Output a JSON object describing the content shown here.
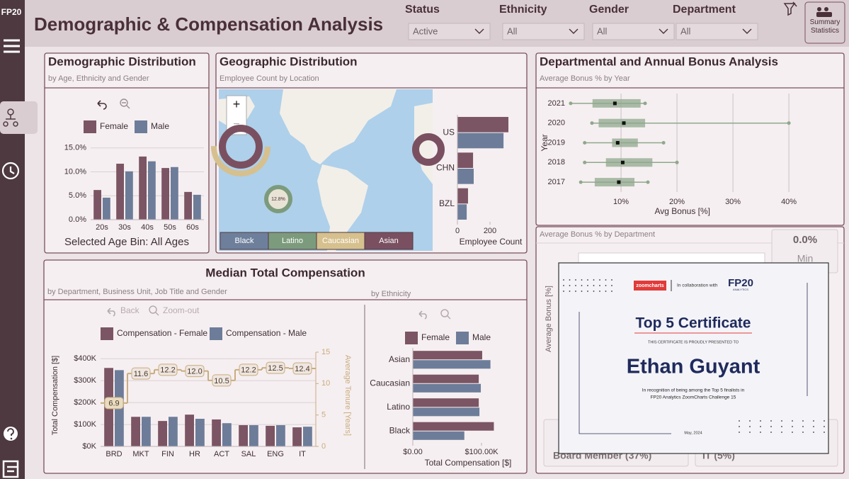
{
  "header": {
    "logo": "FP20",
    "title": "Demographic & Compensation Analysis",
    "filters": [
      {
        "label": "Status",
        "value": "Active"
      },
      {
        "label": "Ethnicity",
        "value": "All"
      },
      {
        "label": "Gender",
        "value": "All"
      },
      {
        "label": "Department",
        "value": "All"
      }
    ],
    "button": "Summary Statistics"
  },
  "demographic": {
    "title": "Demographic Distribution",
    "subtitle": "by Age, Ethnicity and Gender",
    "footer": "Selected Age Bin: All Ages",
    "chart_data": {
      "type": "bar",
      "categories": [
        "20s",
        "30s",
        "40s",
        "50s",
        "60s"
      ],
      "series": [
        {
          "name": "Female",
          "color": "#7b5563",
          "values": [
            6.2,
            11.7,
            13.2,
            10.8,
            5.8
          ]
        },
        {
          "name": "Male",
          "color": "#6d7d99",
          "values": [
            4.6,
            10.1,
            12.2,
            11.0,
            5.2
          ]
        }
      ],
      "ylim": [
        0,
        16
      ],
      "yticks": [
        {
          "value": 0,
          "label": "0.0%"
        },
        {
          "value": 5,
          "label": "5.0%"
        },
        {
          "value": 10,
          "label": "10.0%"
        },
        {
          "value": 15,
          "label": "15.0%"
        }
      ],
      "grid": true
    }
  },
  "geographic": {
    "title": "Geographic Distribution",
    "subtitle": "Employee Count by Location",
    "map": {
      "donut_label": "12.8%",
      "zoom_in": "+",
      "zoom_out": "−",
      "legend": [
        {
          "name": "Black",
          "color": "#6e7f9c"
        },
        {
          "name": "Latino",
          "color": "#7c9b7c"
        },
        {
          "name": "Caucasian",
          "color": "#d6c08e"
        },
        {
          "name": "Asian",
          "color": "#7a5060"
        }
      ]
    },
    "chart_data": {
      "type": "hbar",
      "categories": [
        "US",
        "CHN",
        "BZL"
      ],
      "series": [
        {
          "name": "Female",
          "color": "#7b5563",
          "values": [
            313,
            96,
            65
          ]
        },
        {
          "name": "Male",
          "color": "#6d7d99",
          "values": [
            283,
            100,
            57
          ]
        }
      ],
      "xlim": [
        0,
        380
      ],
      "xticks": [
        0,
        200
      ],
      "xlabel": "Employee Count"
    }
  },
  "bonus": {
    "title": "Departmental and Annual Bonus Analysis",
    "subtitle": "Average Bonus % by Year",
    "chart_data": {
      "type": "box",
      "categories": [
        "2021",
        "2020",
        "2019",
        "2018",
        "2017"
      ],
      "color": "#8fa88c",
      "boxes": [
        {
          "min": 1.0,
          "q1": 4.9,
          "median": 8.9,
          "q3": 13.5,
          "max": 14.3
        },
        {
          "min": 4.8,
          "q1": 6.0,
          "median": 10.5,
          "q3": 14.3,
          "max": 40.0
        },
        {
          "min": 3.5,
          "q1": 8.4,
          "median": 9.4,
          "q3": 13.0,
          "max": 17.6
        },
        {
          "min": 3.5,
          "q1": 7.3,
          "median": 10.3,
          "q3": 15.6,
          "max": 20.0
        },
        {
          "min": 2.8,
          "q1": 5.3,
          "median": 9.6,
          "q3": 12.4,
          "max": 14.8
        }
      ],
      "xlim": [
        0.5,
        46
      ],
      "xticks": [
        {
          "value": 10,
          "label": "10%"
        },
        {
          "value": 20,
          "label": "20%"
        },
        {
          "value": 30,
          "label": "30%"
        },
        {
          "value": 40,
          "label": "40%"
        }
      ],
      "xlabel": "Avg Bonus [%]",
      "ylabel": "Year",
      "grid": true
    }
  },
  "department": {
    "subtitle": "Average Bonus % by Department",
    "ylabel": "Average Bonus [%]",
    "kpi": {
      "value": "0.0%",
      "label": "Min"
    },
    "cards": [
      "Board Member (37%)",
      "IT (5%)"
    ]
  },
  "compensation": {
    "title": "Median Total Compensation",
    "subtitle": "by Department, Business Unit, Job Title and Gender",
    "back": "Back",
    "zoom_out": "Zoom-out",
    "chart_data": {
      "type": "bar",
      "categories": [
        "BRD",
        "MKT",
        "FIN",
        "HR",
        "ACT",
        "SAL",
        "ENG",
        "IT"
      ],
      "series": [
        {
          "name": "Compensation - Female",
          "color": "#7b5563",
          "values": [
            358000,
            135000,
            116000,
            145000,
            123000,
            97000,
            94000,
            87000
          ]
        },
        {
          "name": "Compensation - Male",
          "color": "#6d7d99",
          "values": [
            348000,
            135000,
            135000,
            126000,
            106000,
            97000,
            97000,
            90000
          ]
        },
        {
          "axis": "y2",
          "color": "#c8ad7e",
          "values": [
            6.9,
            11.6,
            12.2,
            12.0,
            10.5,
            12.2,
            12.5,
            12.4
          ],
          "value_labels": [
            "6.9",
            "11.6",
            "12.2",
            "12.0",
            "10.5",
            "12.2",
            "12.5",
            "12.4"
          ]
        }
      ],
      "ylim": [
        0,
        430000
      ],
      "yticks": [
        {
          "value": 0,
          "label": "$0K"
        },
        {
          "value": 100000,
          "label": "$100K"
        },
        {
          "value": 200000,
          "label": "$200K"
        },
        {
          "value": 300000,
          "label": "$300K"
        },
        {
          "value": 400000,
          "label": "$400K"
        }
      ],
      "y2lim": [
        0,
        15
      ],
      "y2ticks": [
        0,
        5,
        10,
        15
      ],
      "ylabel": "Total Compensation [$]",
      "y2label": "Average Tenure [Years]",
      "grid": true
    }
  },
  "ethnicity": {
    "subtitle": "by Ethnicity",
    "chart_data": {
      "type": "hbar",
      "categories": [
        "Asian",
        "Caucasian",
        "Latino",
        "Black"
      ],
      "series": [
        {
          "name": "Female",
          "color": "#7b5563",
          "values": [
            101000,
            96000,
            96000,
            118000
          ]
        },
        {
          "name": "Male",
          "color": "#6d7d99",
          "values": [
            113000,
            99000,
            97000,
            75000
          ]
        }
      ],
      "xlim": [
        0,
        130000
      ],
      "xticks": [
        {
          "value": 0,
          "label": "$0.00"
        },
        {
          "value": 100000,
          "label": "$100.00K"
        }
      ],
      "xlabel": "Total Compensation [$]"
    }
  },
  "certificate": {
    "brand": "zoomcharts",
    "collab": "In collaboration with",
    "partner": "FP20",
    "partner_sub": "ANALYTICS",
    "title": "Top 5 Certificate",
    "presented": "THIS CERTIFICATE IS PROUDLY PRESENTED TO",
    "name": "Ethan Guyant",
    "recognition": [
      "In recognition of being among the Top 5 finalists in",
      "FP20 Analytics ZoomCharts Challenge 15"
    ],
    "date": "May, 2024"
  }
}
